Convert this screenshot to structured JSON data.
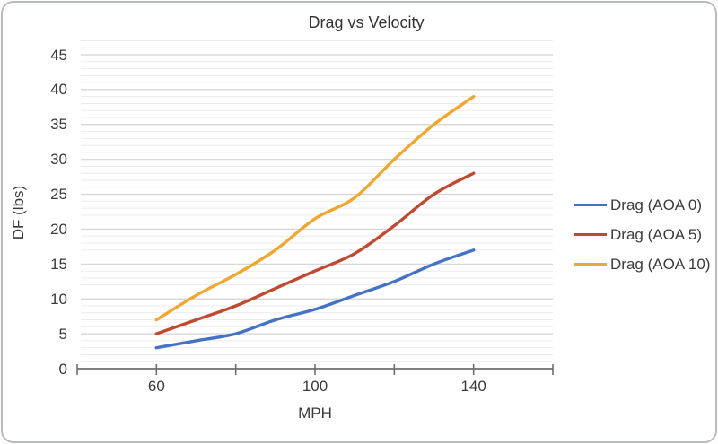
{
  "chart_data": {
    "type": "line",
    "title": "Drag vs Velocity",
    "xlabel": "MPH",
    "ylabel": "DF (lbs)",
    "x": [
      60,
      70,
      80,
      90,
      100,
      110,
      120,
      130,
      140
    ],
    "series": [
      {
        "name": "Drag (AOA 0)",
        "color": "#4472C4",
        "values": [
          3,
          4,
          5,
          7,
          8.5,
          10.5,
          12.5,
          15,
          17
        ]
      },
      {
        "name": "Drag (AOA 5)",
        "color": "#C04A30",
        "values": [
          5,
          7,
          9,
          11.5,
          14,
          16.5,
          20.5,
          25,
          28
        ]
      },
      {
        "name": "Drag (AOA 10)",
        "color": "#F0A732",
        "values": [
          7,
          10.5,
          13.5,
          17,
          21.5,
          24.5,
          30,
          35,
          39
        ]
      }
    ],
    "x_axis": {
      "min": 40,
      "max": 160,
      "tick_step": 20,
      "labeled_ticks": [
        60,
        100,
        140
      ]
    },
    "y_axis": {
      "min": 0,
      "max": 45,
      "label_step": 5,
      "minor_step": 1,
      "tick_labels": [
        "0",
        "5",
        "10",
        "15",
        "20",
        "25",
        "30",
        "35",
        "40",
        "45"
      ]
    },
    "legend_position": "right",
    "grid": true,
    "colors": {
      "major_gridline": "#d2d2d2",
      "minor_gridline": "#ebebeb",
      "axis_line": "#6e6e6e",
      "text": "#3b3b3b"
    },
    "line_style": "smooth"
  }
}
